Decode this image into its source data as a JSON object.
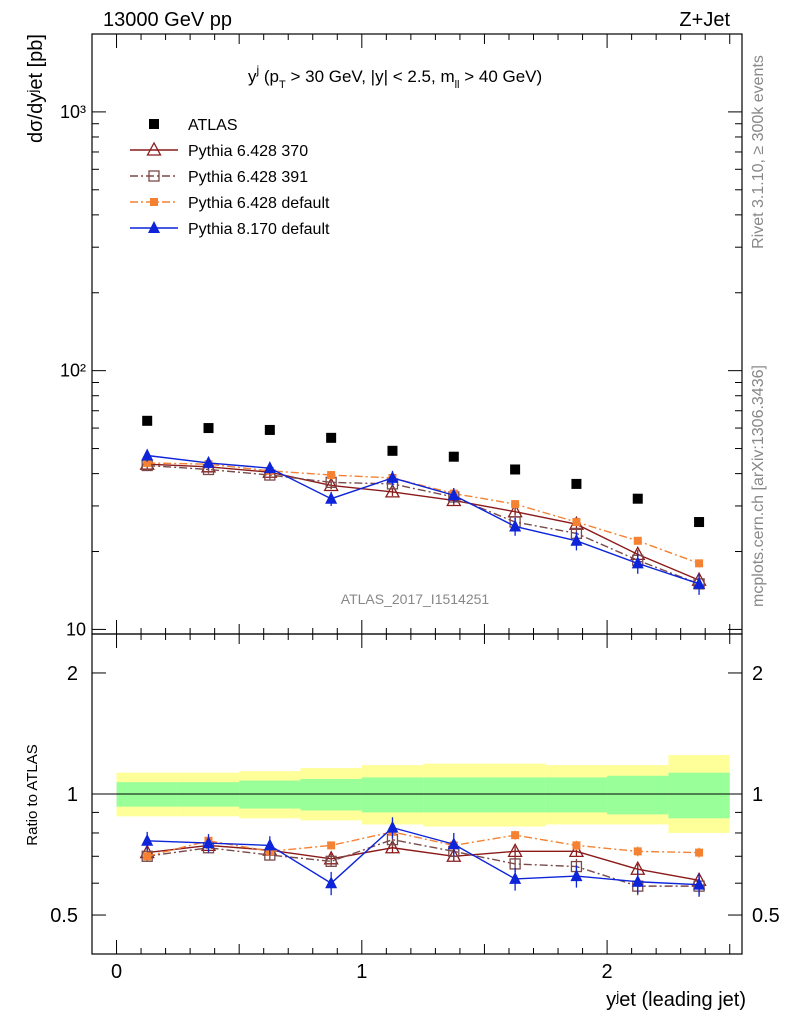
{
  "header": {
    "left": "13000 GeV pp",
    "right": "Z+Jet"
  },
  "side_labels": {
    "rivet": "Rivet 3.1.10, ≥ 300k events",
    "mcplots": "mcplots.cern.ch [arXiv:1306.3436]"
  },
  "watermark": "ATLAS_2017_I1514251",
  "plot_title": {
    "y": "y",
    "j": "j",
    "open": " (p",
    "T": "T",
    "mid": " > 30 GeV, |y| < 2.5, m",
    "ll": "ll",
    "close": " > 40 GeV)"
  },
  "axes": {
    "main_ylabel": "dσ/dyʲet [pb]",
    "ratio_ylabel": "Ratio to ATLAS",
    "xlabel": "yʲet (leading jet)"
  },
  "chart_data": [
    {
      "type": "scatter",
      "panel": "main",
      "y_scale": "log",
      "ylim": [
        9.6,
        2000
      ],
      "xlim": [
        -0.1,
        2.55
      ],
      "x_ticks": [
        "0",
        "1",
        "2"
      ],
      "y_ticks": [
        "10",
        "10²",
        "10³"
      ],
      "x": [
        0.125,
        0.375,
        0.625,
        0.875,
        1.125,
        1.375,
        1.625,
        1.875,
        2.125,
        2.375
      ],
      "series": [
        {
          "name": "ATLAS",
          "color": "#000000",
          "marker": "filled-square",
          "line": "none",
          "values": [
            64,
            60,
            59,
            55,
            49,
            46.5,
            41.5,
            36.5,
            32,
            26
          ]
        },
        {
          "name": "Pythia 6.428 370",
          "color": "#8b1a1a",
          "marker": "open-triangle",
          "line": "solid",
          "values": [
            43.5,
            42.5,
            40.5,
            36,
            34,
            31.5,
            28.5,
            25.5,
            19.5,
            15.5
          ],
          "errors": [
            1.5,
            1.5,
            1.5,
            1.2,
            1.2,
            1.2,
            1.0,
            1.0,
            0.8,
            0.7
          ]
        },
        {
          "name": "Pythia 6.428 391",
          "color": "#7a4a4a",
          "marker": "open-square",
          "line": "dash-dot",
          "values": [
            43,
            41.5,
            39.5,
            37,
            36.5,
            32.5,
            26,
            23.5,
            18.5,
            15
          ],
          "errors": [
            1.5,
            1.5,
            1.5,
            1.2,
            1.2,
            1.2,
            1.0,
            1.0,
            0.8,
            0.7
          ]
        },
        {
          "name": "Pythia 6.428 default",
          "color": "#f58233",
          "marker": "filled-square-small",
          "line": "dash-dot",
          "values": [
            44,
            43.5,
            41,
            39.5,
            38.5,
            33.5,
            30.5,
            26,
            22,
            18
          ],
          "errors": [
            1.2,
            1.2,
            1.2,
            1.0,
            1.0,
            1.0,
            0.9,
            0.8,
            0.7,
            0.6
          ]
        },
        {
          "name": "Pythia 8.170 default",
          "color": "#0d24d9",
          "marker": "filled-triangle",
          "line": "solid",
          "values": [
            47,
            44,
            42,
            32,
            38.5,
            33,
            25,
            22,
            18,
            15
          ],
          "errors": [
            2.5,
            2.2,
            2.2,
            2.0,
            2.5,
            2.2,
            2.0,
            1.8,
            1.6,
            1.4
          ]
        }
      ]
    },
    {
      "type": "scatter",
      "panel": "ratio",
      "y_scale": "log",
      "ylim": [
        0.4,
        2.5
      ],
      "xlim": [
        -0.1,
        2.55
      ],
      "x_ticks": [
        "0",
        "1",
        "2"
      ],
      "y_ticks": [
        "0.5",
        "1",
        "2"
      ],
      "reference_line": 1,
      "bands": {
        "x_edges": [
          0,
          0.25,
          0.5,
          0.75,
          1.0,
          1.25,
          1.5,
          1.75,
          2.0,
          2.25,
          2.5
        ],
        "stat_color": "#99ff99",
        "syst_color": "#ffff99",
        "stat": [
          [
            0.93,
            1.07
          ],
          [
            0.93,
            1.07
          ],
          [
            0.92,
            1.08
          ],
          [
            0.91,
            1.09
          ],
          [
            0.9,
            1.1
          ],
          [
            0.9,
            1.1
          ],
          [
            0.9,
            1.1
          ],
          [
            0.9,
            1.1
          ],
          [
            0.89,
            1.11
          ],
          [
            0.87,
            1.13
          ]
        ],
        "syst": [
          [
            0.88,
            1.13
          ],
          [
            0.88,
            1.13
          ],
          [
            0.87,
            1.14
          ],
          [
            0.86,
            1.16
          ],
          [
            0.84,
            1.18
          ],
          [
            0.83,
            1.19
          ],
          [
            0.83,
            1.19
          ],
          [
            0.84,
            1.18
          ],
          [
            0.84,
            1.18
          ],
          [
            0.8,
            1.25
          ]
        ]
      },
      "x": [
        0.125,
        0.375,
        0.625,
        0.875,
        1.125,
        1.375,
        1.625,
        1.875,
        2.125,
        2.375
      ],
      "series": [
        {
          "name": "Pythia 6.428 370",
          "color": "#8b1a1a",
          "marker": "open-triangle",
          "line": "solid",
          "values": [
            0.715,
            0.745,
            0.725,
            0.69,
            0.735,
            0.7,
            0.72,
            0.72,
            0.65,
            0.61
          ],
          "errors": [
            0.02,
            0.02,
            0.02,
            0.02,
            0.02,
            0.02,
            0.02,
            0.02,
            0.02,
            0.02
          ]
        },
        {
          "name": "Pythia 6.428 391",
          "color": "#7a4a4a",
          "marker": "open-square",
          "line": "dash-dot",
          "values": [
            0.7,
            0.735,
            0.705,
            0.68,
            0.77,
            0.72,
            0.67,
            0.66,
            0.59,
            0.59
          ],
          "errors": [
            0.02,
            0.02,
            0.02,
            0.02,
            0.03,
            0.02,
            0.03,
            0.03,
            0.03,
            0.03
          ]
        },
        {
          "name": "Pythia 6.428 default",
          "color": "#f58233",
          "marker": "filled-square-small",
          "line": "dash-dot",
          "values": [
            0.7,
            0.765,
            0.72,
            0.745,
            0.805,
            0.745,
            0.79,
            0.745,
            0.72,
            0.715
          ],
          "errors": [
            0.015,
            0.015,
            0.015,
            0.015,
            0.02,
            0.015,
            0.02,
            0.02,
            0.02,
            0.02
          ]
        },
        {
          "name": "Pythia 8.170 default",
          "color": "#0d24d9",
          "marker": "filled-triangle",
          "line": "solid",
          "values": [
            0.765,
            0.755,
            0.745,
            0.6,
            0.825,
            0.75,
            0.615,
            0.625,
            0.605,
            0.595
          ],
          "errors": [
            0.04,
            0.04,
            0.04,
            0.04,
            0.05,
            0.05,
            0.04,
            0.04,
            0.04,
            0.04
          ]
        }
      ]
    }
  ]
}
